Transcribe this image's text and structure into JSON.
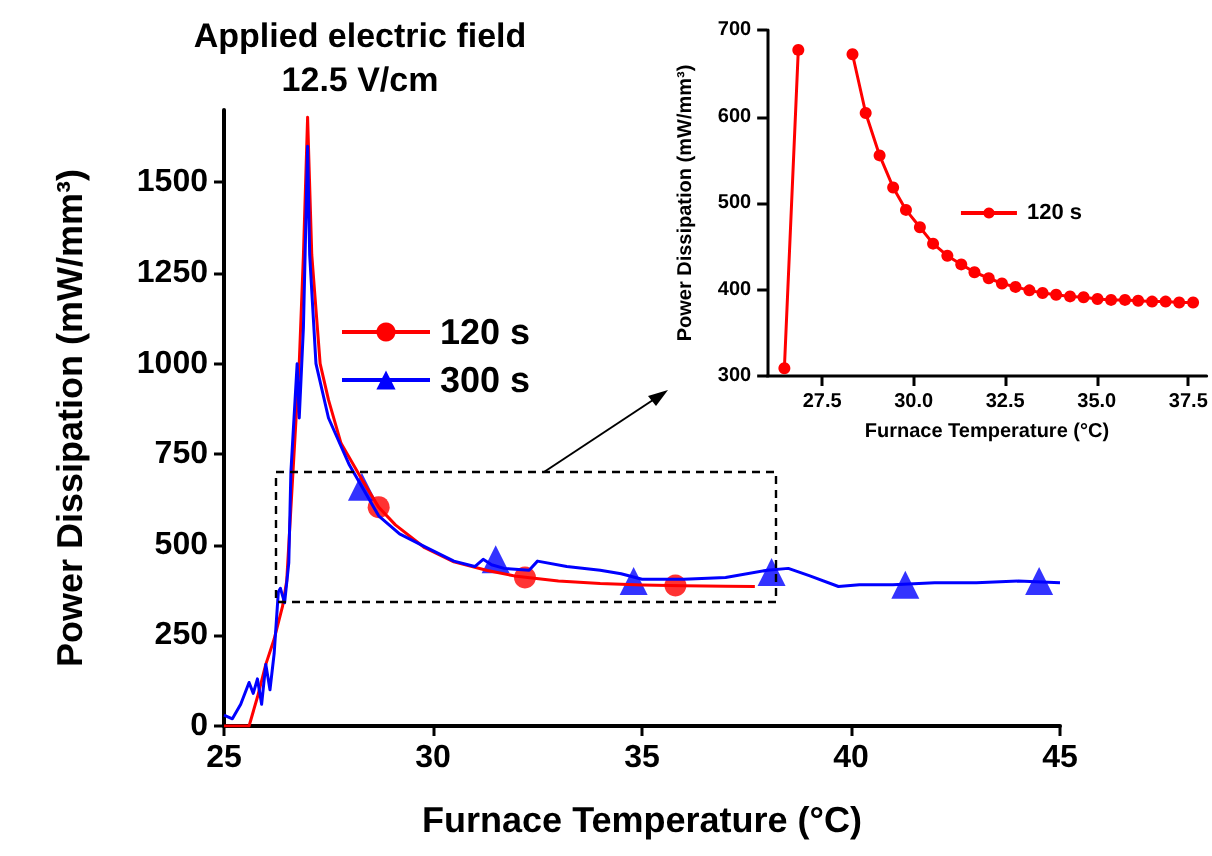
{
  "chart_data": [
    {
      "type": "line",
      "title": "Applied electric field\n12.5 V/cm",
      "xlabel": "Furnace Temperature (°C)",
      "ylabel": "Power Dissipation (mW/mm³)",
      "xlim": [
        25,
        45
      ],
      "xticks": [
        25,
        30,
        35,
        40,
        45
      ],
      "ylim": [
        0,
        1700
      ],
      "yticks": [
        0,
        250,
        500,
        750,
        1000,
        1250,
        1500
      ],
      "legend": "top left",
      "series": [
        {
          "name": "120 s",
          "color": "#ff0000",
          "x": [
            25,
            25.6,
            25.8,
            26.0,
            26.2,
            26.4,
            26.5,
            26.6,
            26.7,
            26.8,
            26.9,
            27.0,
            27.1,
            27.3,
            27.5,
            27.8,
            28.3,
            28.7,
            29.1,
            29.8,
            30.5,
            31.3,
            32.0,
            33.0,
            34.0,
            35.0,
            36.0,
            37.0,
            37.7
          ],
          "values": [
            0,
            0,
            80,
            170,
            240,
            330,
            400,
            600,
            800,
            1000,
            1300,
            1680,
            1300,
            1000,
            900,
            780,
            680,
            604,
            555,
            492,
            453,
            429,
            413,
            400,
            393,
            389,
            387,
            386,
            385
          ]
        },
        {
          "name": "300 s",
          "color": "#0000ff",
          "x": [
            25,
            25.2,
            25.4,
            25.6,
            25.7,
            25.8,
            25.9,
            26.0,
            26.1,
            26.2,
            26.3,
            26.35,
            26.45,
            26.55,
            26.6,
            26.7,
            26.75,
            26.8,
            26.9,
            27.0,
            27.05,
            27.2,
            27.5,
            28.0,
            28.3,
            28.7,
            29.2,
            29.8,
            30.5,
            31.0,
            31.2,
            31.4,
            31.7,
            32.3,
            32.5,
            33.2,
            34.0,
            34.5,
            35.0,
            36.0,
            37.0,
            38.0,
            38.5,
            39.0,
            39.7,
            40.2,
            41.0,
            42.0,
            43.0,
            44.0,
            45.0
          ],
          "values": [
            30,
            20,
            60,
            120,
            90,
            130,
            60,
            170,
            100,
            200,
            370,
            380,
            340,
            450,
            700,
            900,
            1000,
            850,
            1100,
            1600,
            1300,
            1000,
            850,
            720,
            660,
            580,
            530,
            495,
            455,
            440,
            460,
            445,
            435,
            430,
            455,
            440,
            430,
            420,
            405,
            405,
            410,
            430,
            435,
            415,
            385,
            390,
            390,
            395,
            395,
            400,
            395
          ]
        },
        {
          "type": "scatter",
          "color": "#ff0000",
          "marker": "circle",
          "x": [
            28.7,
            32.2,
            35.8
          ],
          "values": [
            604,
            410,
            388
          ]
        },
        {
          "type": "scatter",
          "color": "#0000ff",
          "marker": "triangle",
          "x": [
            28.3,
            31.5,
            34.8,
            38.1,
            41.3,
            44.5
          ],
          "values": [
            660,
            460,
            400,
            425,
            390,
            400
          ]
        }
      ]
    },
    {
      "type": "line",
      "xlabel": "Furnace Temperature (°C)",
      "ylabel": "Power Dissipation (mW/mm³)",
      "xlim": [
        26,
        38
      ],
      "xticks": [
        27.5,
        {
          "value": 30,
          "label": "30.0"
        },
        32.5,
        {
          "value": 35,
          "label": "35.0"
        },
        37.5
      ],
      "ylim": [
        300,
        700
      ],
      "yticks": [
        300,
        400,
        500,
        600,
        700
      ],
      "legend": "right",
      "series": [
        {
          "name": "120 s",
          "color": "#ff0000",
          "marker": "circle",
          "x": [
            26.47,
            26.85,
            27.5,
            28.33,
            28.69,
            29.07,
            29.44,
            29.79,
            30.17,
            30.53,
            30.92,
            31.3,
            31.66,
            32.05,
            32.41,
            32.78,
            33.16,
            33.52,
            33.89,
            34.27,
            34.64,
            35.02,
            35.39,
            35.77,
            36.13,
            36.51,
            36.88,
            37.25,
            37.63
          ],
          "values": [
            309,
            677,
            null,
            672,
            604,
            555,
            518,
            492,
            472,
            453,
            439,
            429,
            420,
            413,
            407,
            403,
            399,
            396,
            394,
            392,
            391,
            389,
            388,
            388,
            387,
            386,
            386,
            385,
            385
          ]
        }
      ]
    }
  ]
}
